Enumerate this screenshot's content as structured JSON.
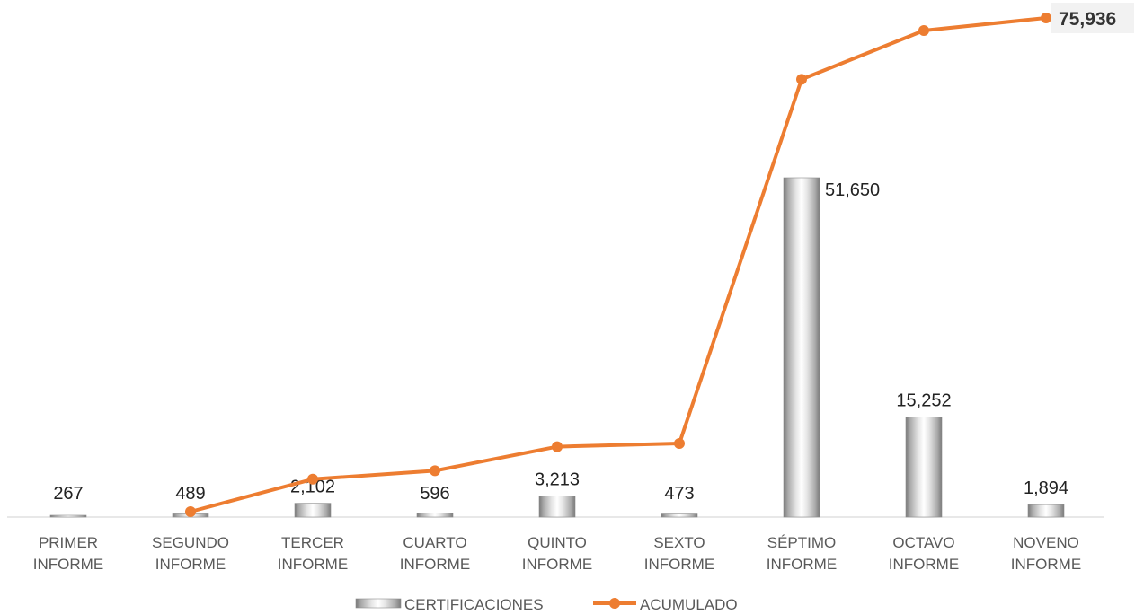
{
  "chart_data": {
    "type": "bar+line",
    "categories": [
      [
        "PRIMER",
        "INFORME"
      ],
      [
        "SEGUNDO",
        "INFORME"
      ],
      [
        "TERCER",
        "INFORME"
      ],
      [
        "CUARTO",
        "INFORME"
      ],
      [
        "QUINTO",
        "INFORME"
      ],
      [
        "SEXTO",
        "INFORME"
      ],
      [
        "SÉPTIMO",
        "INFORME"
      ],
      [
        "OCTAVO",
        "INFORME"
      ],
      [
        "NOVENO",
        "INFORME"
      ]
    ],
    "series": [
      {
        "name": "CERTIFICACIONES",
        "kind": "bar",
        "values": [
          267,
          489,
          2102,
          596,
          3213,
          473,
          51650,
          15252,
          1894
        ],
        "labels": [
          "267",
          "489",
          "2,102",
          "596",
          "3,213",
          "473",
          "51,650",
          "15,252",
          "1,894"
        ]
      },
      {
        "name": "ACUMULADO",
        "kind": "line",
        "color": "#ED7D31",
        "values": [
          null,
          0,
          5000,
          6300,
          10000,
          10500,
          66500,
          74000,
          75936
        ],
        "last_label": "75,936"
      }
    ],
    "legend": "bottom",
    "grid": false
  }
}
